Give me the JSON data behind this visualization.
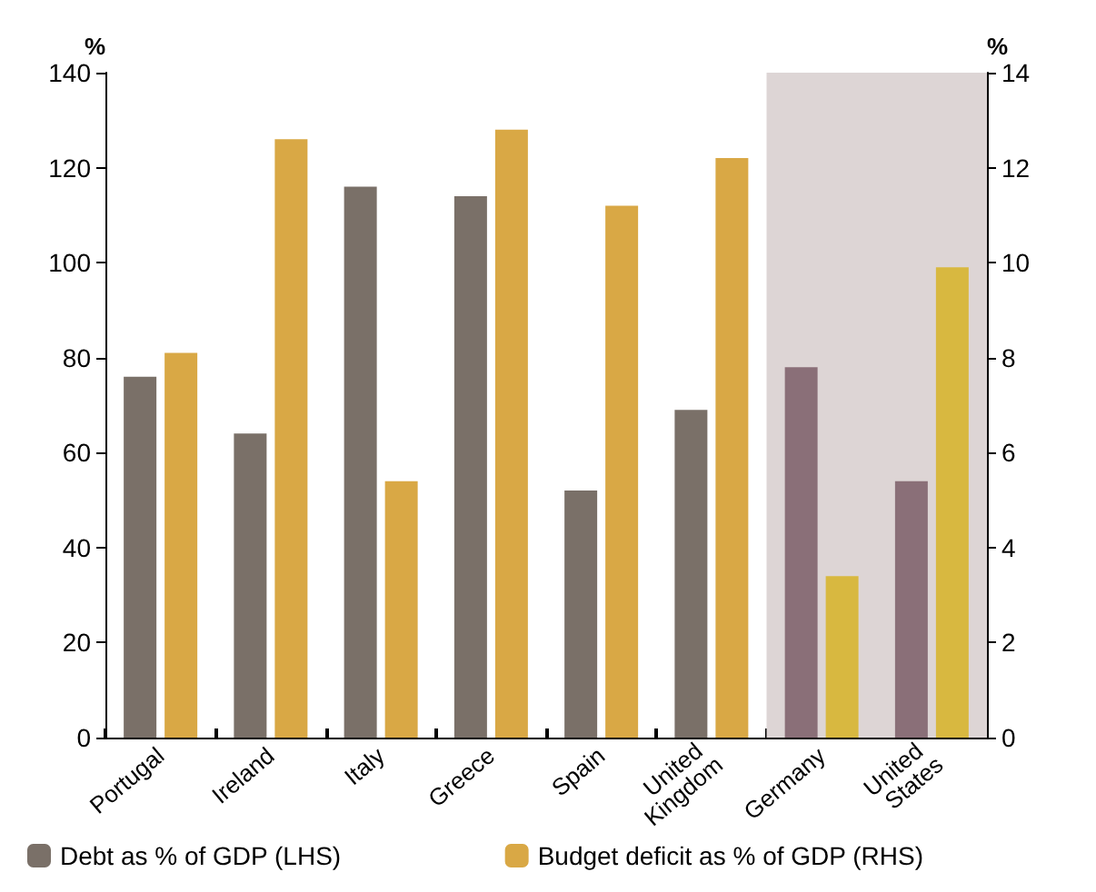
{
  "chart_data": {
    "type": "bar",
    "ylabel": "%",
    "y2label": "%",
    "categories": [
      "Portugal",
      "Ireland",
      "Italy",
      "Greece",
      "Spain",
      "United Kingdom",
      "Germany",
      "United States"
    ],
    "series": [
      {
        "name": "Debt as % of GDP (LHS)",
        "color": "#7a7068",
        "colors": [
          "#7a7068",
          "#7a7068",
          "#7a7068",
          "#7a7068",
          "#7a7068",
          "#7a7068",
          "#8a6f78",
          "#8a6f78"
        ],
        "values": [
          76,
          64,
          116,
          114,
          52,
          69,
          78,
          54
        ]
      },
      {
        "name": "Budget deficit as % of GDP (RHS)",
        "color": "#d9a845",
        "colors": [
          "#d9a845",
          "#d9a845",
          "#d9a845",
          "#d9a845",
          "#d9a845",
          "#d9a845",
          "#d8b840",
          "#d8b840"
        ],
        "axis": "y2",
        "values": [
          8.1,
          12.6,
          5.4,
          12.8,
          11.2,
          12.2,
          3.4,
          9.9
        ]
      }
    ],
    "ylim": [
      0,
      140
    ],
    "yticks": [
      0,
      20,
      40,
      60,
      80,
      100,
      120,
      140
    ],
    "y2lim": [
      0,
      14
    ],
    "y2ticks": [
      0,
      2,
      4,
      6,
      8,
      10,
      12,
      14
    ],
    "bands": [
      {
        "axis": "x",
        "from": "Germany",
        "to": "United States",
        "color": "#ddd5d5"
      }
    ],
    "grid": false,
    "legend": "bottom"
  }
}
